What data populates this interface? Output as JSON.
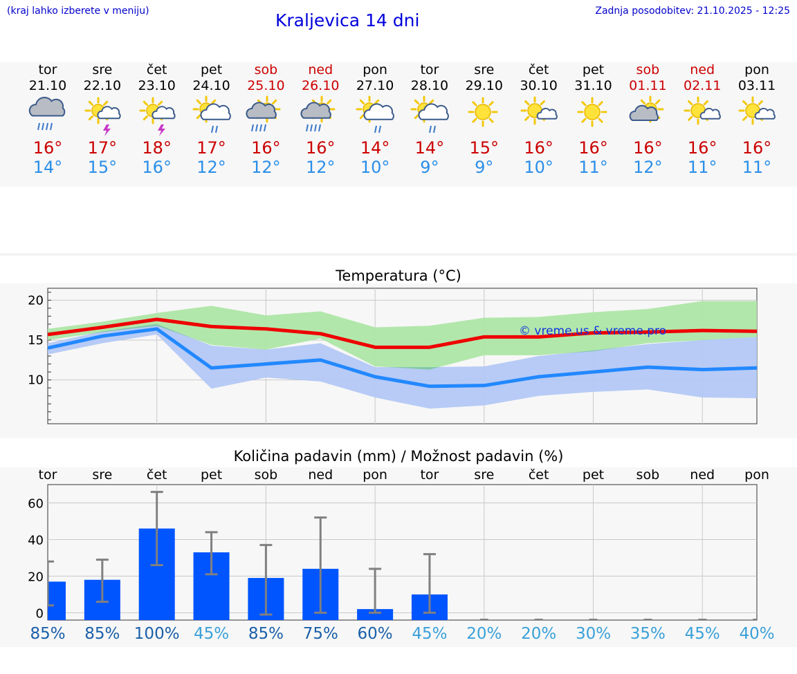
{
  "header": {
    "left_note": "(kraj lahko izberete v meniju)",
    "title": "Kraljevica 14 dni",
    "updated": "Zadnja posodobitev: 21.10.2025 - 12:25"
  },
  "days": [
    {
      "name": "tor",
      "date": "21.10",
      "weekend": false,
      "icon": "cloud-heavy-rain-icon",
      "max": "16°",
      "min": "14°"
    },
    {
      "name": "sre",
      "date": "22.10",
      "weekend": false,
      "icon": "sun-storm-icon",
      "max": "17°",
      "min": "15°"
    },
    {
      "name": "čet",
      "date": "23.10",
      "weekend": false,
      "icon": "sun-storm-icon",
      "max": "18°",
      "min": "16°"
    },
    {
      "name": "pet",
      "date": "24.10",
      "weekend": false,
      "icon": "sun-cloud-rain-icon",
      "max": "17°",
      "min": "12°"
    },
    {
      "name": "sob",
      "date": "25.10",
      "weekend": true,
      "icon": "sun-cloud-heavy-rain-icon",
      "max": "16°",
      "min": "12°"
    },
    {
      "name": "ned",
      "date": "26.10",
      "weekend": true,
      "icon": "sun-cloud-heavy-rain-icon",
      "max": "16°",
      "min": "12°"
    },
    {
      "name": "pon",
      "date": "27.10",
      "weekend": false,
      "icon": "sun-cloud-rain-icon",
      "max": "14°",
      "min": "10°"
    },
    {
      "name": "tor",
      "date": "28.10",
      "weekend": false,
      "icon": "sun-cloud-rain-icon",
      "max": "14°",
      "min": "9°"
    },
    {
      "name": "sre",
      "date": "29.10",
      "weekend": false,
      "icon": "sun-icon",
      "max": "15°",
      "min": "9°"
    },
    {
      "name": "čet",
      "date": "30.10",
      "weekend": false,
      "icon": "sun-small-cloud-icon",
      "max": "16°",
      "min": "10°"
    },
    {
      "name": "pet",
      "date": "31.10",
      "weekend": false,
      "icon": "sun-icon",
      "max": "16°",
      "min": "11°"
    },
    {
      "name": "sob",
      "date": "01.11",
      "weekend": true,
      "icon": "sun-cloud-icon",
      "max": "16°",
      "min": "12°"
    },
    {
      "name": "ned",
      "date": "02.11",
      "weekend": true,
      "icon": "sun-small-cloud-icon",
      "max": "16°",
      "min": "11°"
    },
    {
      "name": "pon",
      "date": "03.11",
      "weekend": false,
      "icon": "sun-small-cloud-icon",
      "max": "16°",
      "min": "11°"
    }
  ],
  "colors": {
    "max_line": "#ee0000",
    "min_line": "#2288ff",
    "max_band": "#aee6a6",
    "min_band": "#b3c8f5",
    "overlap_band": "#7fc6a6",
    "bar": "#0055ff",
    "error": "#808080"
  },
  "chart_data": [
    {
      "type": "line",
      "title": "Temperatura (°C)",
      "watermark": "© vreme.us & vreme.pro",
      "x": [
        0,
        1,
        2,
        3,
        4,
        5,
        6,
        7,
        8,
        9,
        10,
        11,
        12,
        13
      ],
      "ylim": [
        4.5,
        21.5
      ],
      "yticks": [
        10,
        15,
        20
      ],
      "series": [
        {
          "name": "max",
          "values": [
            15.7,
            16.6,
            17.6,
            16.7,
            16.4,
            15.8,
            14.1,
            14.1,
            15.4,
            15.4,
            15.9,
            16.0,
            16.2,
            16.1
          ],
          "band_low": [
            15.0,
            16.0,
            16.8,
            14.4,
            13.8,
            15.2,
            11.7,
            11.3,
            13.1,
            13.1,
            13.6,
            14.6,
            15.0,
            15.4
          ],
          "band_high": [
            16.4,
            17.3,
            18.4,
            19.3,
            18.1,
            18.6,
            16.6,
            16.8,
            17.8,
            17.9,
            18.5,
            18.9,
            19.9,
            19.9
          ]
        },
        {
          "name": "min",
          "values": [
            14.0,
            15.5,
            16.4,
            11.5,
            12.0,
            12.5,
            10.4,
            9.2,
            9.3,
            10.4,
            11.0,
            11.6,
            11.3,
            11.5
          ],
          "band_low": [
            13.2,
            14.6,
            15.7,
            8.9,
            10.3,
            9.8,
            7.8,
            6.4,
            6.8,
            8.0,
            8.5,
            8.8,
            7.8,
            7.7
          ],
          "band_high": [
            14.6,
            16.1,
            17.0,
            14.3,
            13.8,
            14.6,
            11.6,
            11.6,
            11.7,
            13.0,
            13.7,
            14.5,
            15.0,
            15.4
          ]
        }
      ]
    },
    {
      "type": "bar",
      "title": "Količina padavin (mm) / Možnost padavin (%)",
      "categories": [
        "tor",
        "sre",
        "čet",
        "pet",
        "sob",
        "ned",
        "pon",
        "tor",
        "sre",
        "čet",
        "pet",
        "sob",
        "ned",
        "pon"
      ],
      "values": [
        17,
        18,
        46,
        33,
        19,
        24,
        2,
        10,
        0,
        0,
        0,
        0,
        0,
        0
      ],
      "err_low": [
        4,
        6,
        26,
        21,
        -1,
        0,
        0,
        0,
        0,
        0,
        0,
        0,
        0,
        0
      ],
      "err_high": [
        28,
        29,
        66,
        44,
        37,
        52,
        24,
        32,
        0,
        0,
        0,
        0,
        0,
        0
      ],
      "ylim": [
        -4,
        70
      ],
      "yticks": [
        0,
        20,
        40,
        60
      ],
      "probability": [
        "85%",
        "85%",
        "100%",
        "45%",
        "85%",
        "75%",
        "60%",
        "45%",
        "20%",
        "20%",
        "30%",
        "35%",
        "45%",
        "40%"
      ],
      "prob_colors": [
        "#1a5fa8",
        "#1a5fa8",
        "#1a5fa8",
        "#3aa0d8",
        "#1a5fa8",
        "#1a5fa8",
        "#1a5fa8",
        "#3aa0d8",
        "#3aa0d8",
        "#3aa0d8",
        "#3aa0d8",
        "#3aa0d8",
        "#3aa0d8",
        "#3aa0d8"
      ]
    }
  ]
}
